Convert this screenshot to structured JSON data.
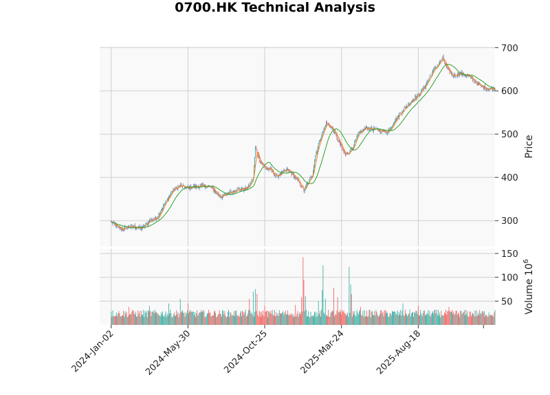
{
  "chart_data": {
    "type": "candlestick",
    "title": "0700.HK Technical Analysis",
    "x_axis": {
      "tick_labels": [
        "2024-Jan-02",
        "2024-May-30",
        "2024-Oct-25",
        "2025-Mar-24",
        "2025-Aug-18"
      ],
      "tick_index": [
        0,
        100,
        200,
        300,
        400
      ],
      "range_index": [
        -15,
        500
      ]
    },
    "price_panel": {
      "ylabel": "Price",
      "ylim": [
        240,
        702
      ],
      "yticks": [
        300,
        400,
        500,
        600,
        700
      ],
      "grid": true,
      "moving_averages": [
        {
          "color": "#ff7f0e",
          "window": 5
        },
        {
          "color": "#2ca02c",
          "window": 20
        }
      ],
      "closes_by_session_index": [
        [
          0,
          297
        ],
        [
          8,
          285
        ],
        [
          15,
          280
        ],
        [
          22,
          286
        ],
        [
          30,
          285
        ],
        [
          40,
          282
        ],
        [
          50,
          300
        ],
        [
          60,
          307
        ],
        [
          70,
          340
        ],
        [
          80,
          370
        ],
        [
          90,
          381
        ],
        [
          100,
          375
        ],
        [
          110,
          379
        ],
        [
          120,
          380
        ],
        [
          130,
          378
        ],
        [
          140,
          358
        ],
        [
          145,
          356
        ],
        [
          155,
          366
        ],
        [
          165,
          372
        ],
        [
          175,
          374
        ],
        [
          180,
          381
        ],
        [
          185,
          400
        ],
        [
          188,
          470
        ],
        [
          193,
          440
        ],
        [
          200,
          422
        ],
        [
          208,
          417
        ],
        [
          215,
          402
        ],
        [
          222,
          410
        ],
        [
          230,
          418
        ],
        [
          237,
          405
        ],
        [
          240,
          400
        ],
        [
          251,
          370
        ],
        [
          262,
          406
        ],
        [
          266,
          450
        ],
        [
          272,
          488
        ],
        [
          280,
          525
        ],
        [
          287,
          515
        ],
        [
          292,
          500
        ],
        [
          305,
          450
        ],
        [
          315,
          470
        ],
        [
          322,
          500
        ],
        [
          332,
          515
        ],
        [
          345,
          510
        ],
        [
          360,
          505
        ],
        [
          375,
          545
        ],
        [
          390,
          575
        ],
        [
          400,
          590
        ],
        [
          410,
          615
        ],
        [
          420,
          648
        ],
        [
          432,
          675
        ],
        [
          438,
          650
        ],
        [
          445,
          635
        ],
        [
          455,
          640
        ],
        [
          465,
          635
        ],
        [
          480,
          612
        ],
        [
          490,
          605
        ],
        [
          500,
          605
        ]
      ]
    },
    "volume_panel": {
      "ylabel": "Volume",
      "ylabel_exponent": "6",
      "ylim": [
        0,
        160
      ],
      "yticks": [
        50,
        100,
        150
      ],
      "grid": true,
      "up_color": "#26a69a",
      "down_color": "#ef5350",
      "base_volume_millions": 20,
      "spikes_by_session_index": [
        [
          0,
          28
        ],
        [
          23,
          38
        ],
        [
          50,
          40
        ],
        [
          75,
          45
        ],
        [
          90,
          55
        ],
        [
          100,
          45
        ],
        [
          180,
          55
        ],
        [
          185,
          70
        ],
        [
          188,
          75
        ],
        [
          190,
          65
        ],
        [
          200,
          40
        ],
        [
          240,
          42
        ],
        [
          248,
          58
        ],
        [
          250,
          142
        ],
        [
          251,
          95
        ],
        [
          253,
          60
        ],
        [
          270,
          50
        ],
        [
          275,
          73
        ],
        [
          276,
          125
        ],
        [
          279,
          55
        ],
        [
          290,
          78
        ],
        [
          295,
          58
        ],
        [
          310,
          122
        ],
        [
          312,
          85
        ],
        [
          313,
          65
        ],
        [
          325,
          38
        ],
        [
          380,
          45
        ],
        [
          400,
          40
        ],
        [
          440,
          38
        ]
      ]
    }
  }
}
